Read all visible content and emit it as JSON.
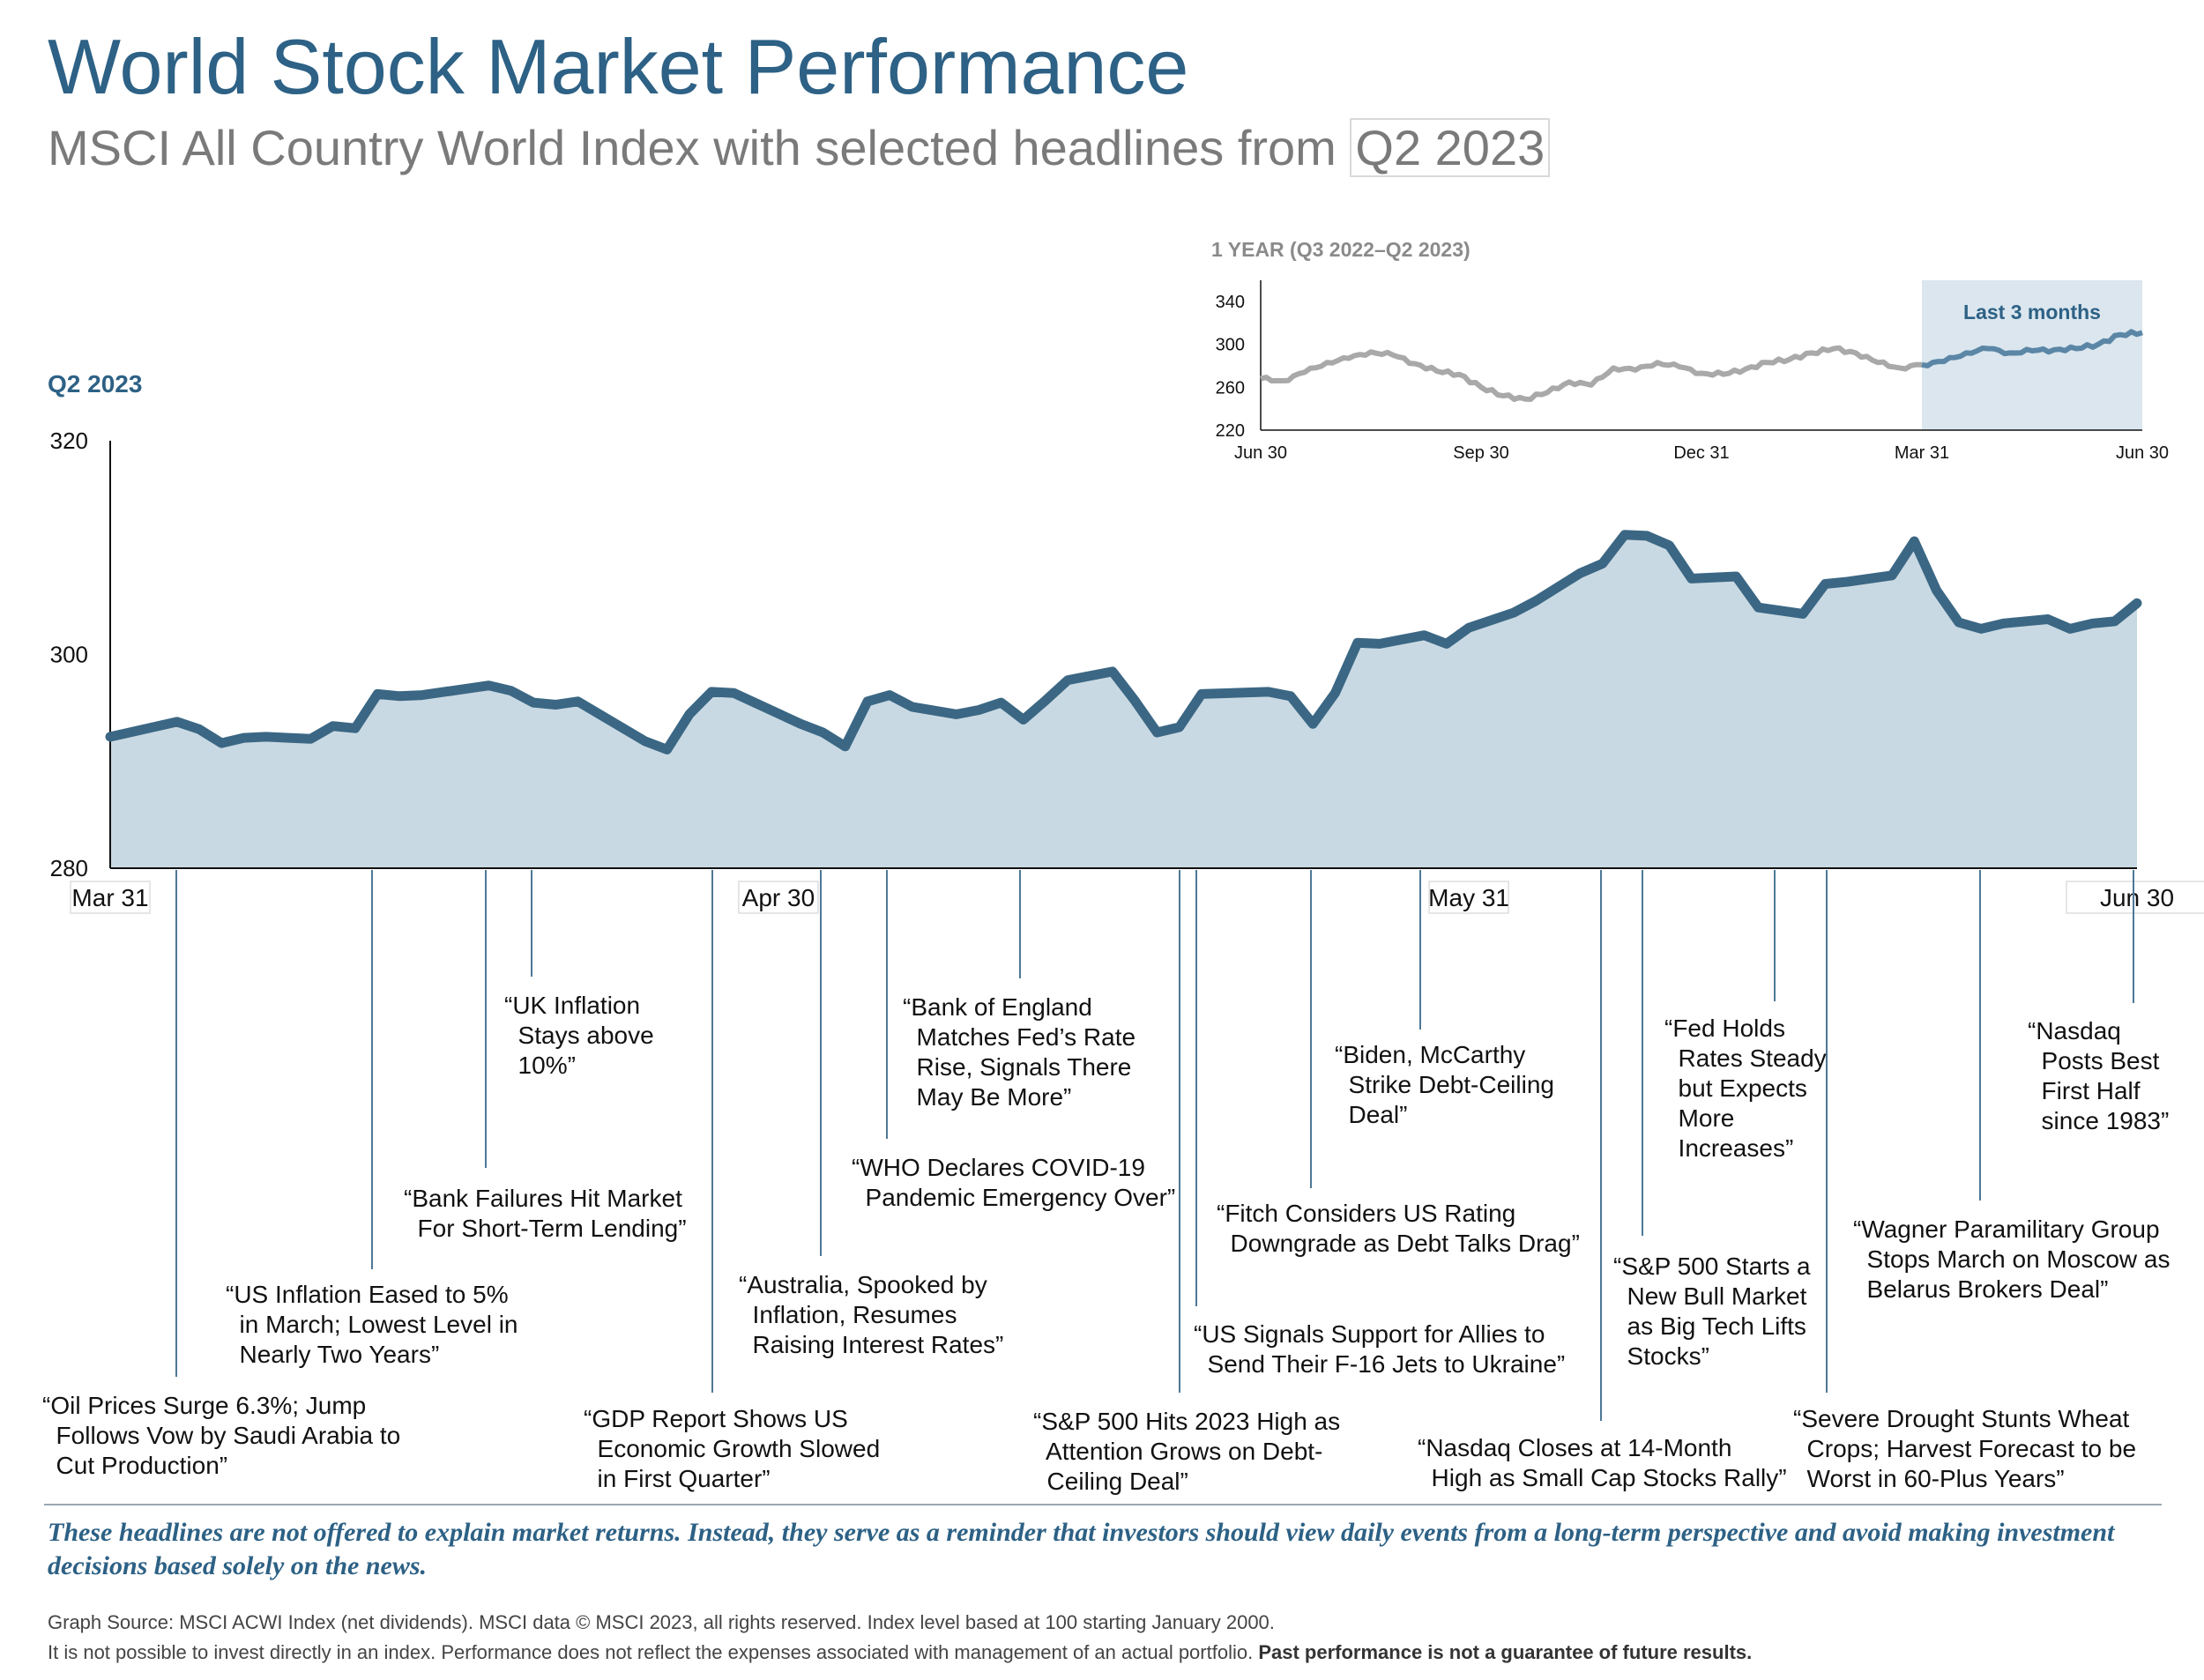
{
  "header": {
    "title": "World Stock Market Performance",
    "subtitle_prefix": "MSCI All Country World Index with selected headlines from ",
    "subtitle_period": "Q2 2023"
  },
  "main_chart_label": "Q2 2023",
  "chart_data": [
    {
      "type": "area",
      "title": "Q2 2023",
      "ylim": [
        280,
        320
      ],
      "yticks": [
        "320",
        "300",
        "280"
      ],
      "xlabels": [
        "Mar 31",
        "Apr 30",
        "May 31",
        "Jun 30"
      ],
      "x_day_index": [
        0,
        30,
        61,
        91
      ],
      "line_color": "#3b6784",
      "fill_color": "#c9d9e3",
      "series": [
        {
          "days": [
            0,
            3,
            4,
            5,
            6,
            7,
            8,
            9,
            10,
            11,
            12,
            13,
            14,
            17,
            18,
            19,
            20,
            21,
            24,
            25,
            26,
            27,
            28,
            31,
            32,
            33,
            34,
            35,
            36,
            38,
            39,
            40,
            41,
            42,
            43,
            45,
            46,
            47,
            48,
            49,
            52,
            53,
            54,
            55,
            56,
            57,
            59,
            60,
            61,
            62,
            63,
            64,
            66,
            67,
            68,
            69,
            70,
            71,
            73,
            74,
            75,
            76,
            77,
            78,
            80,
            81,
            82,
            83,
            84,
            85,
            87,
            88,
            89,
            90,
            91
          ],
          "values": [
            292.3,
            293.7,
            293,
            291.7,
            292.2,
            292.3,
            292.2,
            292.1,
            293.3,
            293.1,
            296.3,
            296.1,
            296.2,
            297.1,
            296.6,
            295.5,
            295.3,
            295.6,
            291.9,
            291.1,
            294.4,
            296.5,
            296.4,
            293.5,
            292.7,
            291.4,
            295.6,
            296.2,
            295.1,
            294.4,
            294.8,
            295.5,
            293.9,
            295.7,
            297.6,
            298.4,
            295.7,
            292.7,
            293.2,
            296.3,
            296.5,
            296.1,
            293.5,
            296.4,
            301.1,
            301.0,
            301.8,
            301.0,
            302.5,
            303.2,
            303.9,
            305.0,
            307.6,
            308.5,
            311.2,
            311.1,
            310.2,
            307.1,
            307.3,
            304.4,
            304.1,
            303.8,
            306.6,
            306.8,
            307.4,
            310.6,
            306.0,
            303.0,
            302.4,
            302.9,
            303.3,
            302.4,
            302.9,
            303.1,
            304.8
          ]
        }
      ]
    },
    {
      "type": "line",
      "title": "1 YEAR (Q3 2022–Q2 2023)",
      "ylim": [
        220,
        340
      ],
      "yticks": [
        "340",
        "300",
        "260",
        "220"
      ],
      "xlabels": [
        "Jun 30",
        "Sep 30",
        "Dec 31",
        "Mar 31",
        "Jun 30"
      ],
      "highlight_label": "Last 3 months",
      "highlight_range": [
        "Mar 31",
        "Jun 30"
      ],
      "past_color": "#a9a9a9",
      "recent_color": "#5b86a6",
      "highlight_fill": "#dbe6ee",
      "series": [
        {
          "months": [
            0,
            0.3,
            0.6,
            0.9,
            1.2,
            1.5,
            1.8,
            2.1,
            2.4,
            2.7,
            3,
            3.3,
            3.6,
            3.9,
            4.2,
            4.5,
            4.8,
            5.1,
            5.4,
            5.7,
            6,
            6.3,
            6.6,
            6.9,
            7.2,
            7.5,
            7.8,
            8.1,
            8.4,
            8.7,
            9,
            9.3,
            9.6,
            9.9,
            10.2,
            10.5,
            10.8,
            11.1,
            11.4,
            11.7,
            12
          ],
          "values": [
            268,
            266,
            274,
            283,
            287,
            293,
            290,
            282,
            275,
            272,
            260,
            252,
            249,
            255,
            265,
            262,
            278,
            276,
            283,
            279,
            273,
            272,
            277,
            283,
            286,
            292,
            296,
            292,
            283,
            278,
            281,
            284,
            292,
            296,
            292,
            294,
            295,
            296,
            300,
            309,
            311
          ]
        }
      ]
    }
  ],
  "headlines": [
    "“Oil Prices Surge 6.3%; Jump\n  Follows Vow by Saudi Arabia to\n  Cut Production”",
    "“US Inflation Eased to 5%\n  in March; Lowest Level in\n  Nearly Two Years”",
    "“Bank Failures Hit Market\n  For Short-Term Lending”",
    "“UK Inflation\n  Stays above\n  10%”",
    "“GDP Report Shows US\n  Economic Growth Slowed\n  in First Quarter”",
    "“Australia, Spooked by\n  Inflation, Resumes\n  Raising Interest Rates”",
    "“WHO Declares COVID-19\n  Pandemic Emergency Over”",
    "“Bank of England\n  Matches Fed’s Rate\n  Rise, Signals There\n  May Be More”",
    "“S&P 500 Hits 2023 High as\n  Attention Grows on Debt-\n  Ceiling Deal”",
    "“US Signals Support for Allies to\n  Send Their F-16 Jets to Ukraine”",
    "“Fitch Considers US Rating\n  Downgrade as Debt Talks Drag”",
    "“Biden, McCarthy\n  Strike Debt-Ceiling\n  Deal”",
    "“Nasdaq Closes at 14-Month\n  High as Small Cap Stocks Rally”",
    "“S&P 500 Starts a\n  New Bull Market\n  as Big Tech Lifts\n  Stocks”",
    "“Fed Holds\n  Rates Steady\n  but Expects\n  More\n  Increases”",
    "“Severe Drought Stunts Wheat\n  Crops; Harvest Forecast to be\n  Worst in 60-Plus Years”",
    "“Wagner Paramilitary Group\n  Stops March on Moscow as\n  Belarus Brokers Deal”",
    "“Nasdaq\n  Posts Best\n  First Half\n  since 1983”"
  ],
  "footer": {
    "disclaimer": "These headlines are not offered to explain market returns. Instead, they serve as a reminder that investors should view daily events from a long-term perspective and avoid making investment decisions based solely on the news.",
    "source_line1": "Graph Source: MSCI ACWI Index (net dividends). MSCI data © MSCI 2023, all rights reserved. Index level based at 100 starting January 2000.",
    "source_line2": "It is not possible to invest directly in an index. Performance does not reflect the expenses associated with management of an actual portfolio. ",
    "source_line2_bold": "Past performance is not a guarantee of future results."
  }
}
